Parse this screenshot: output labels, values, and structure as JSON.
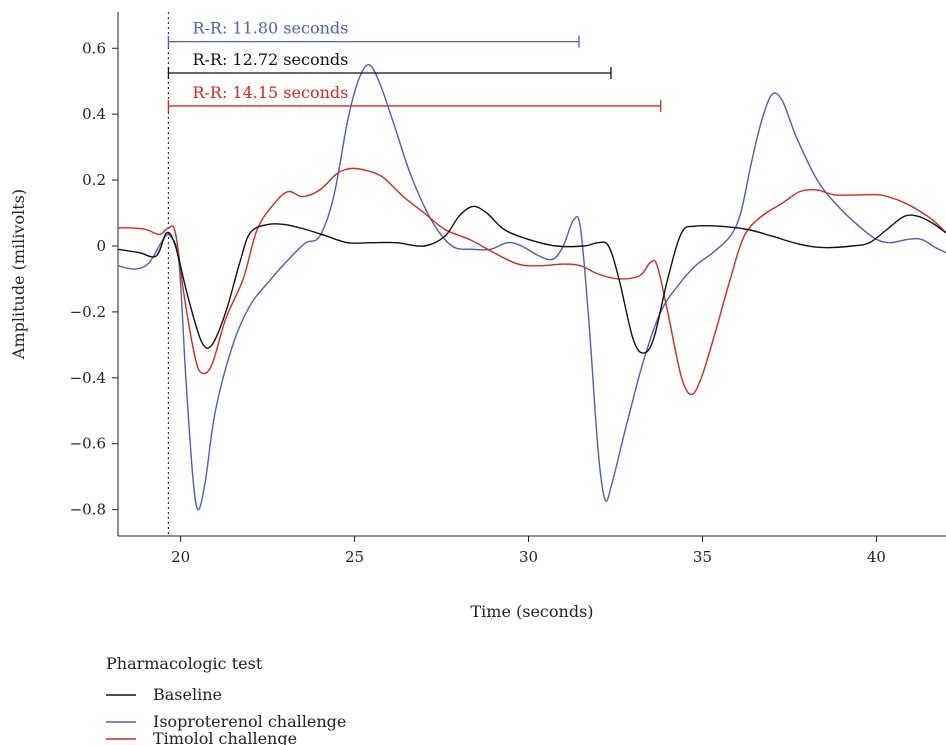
{
  "chart_data": {
    "type": "line",
    "xlabel": "Time (seconds)",
    "ylabel": "Amplitude (milivolts)",
    "xlim": [
      18.2,
      42
    ],
    "ylim": [
      -0.88,
      0.71
    ],
    "xticks": [
      20,
      25,
      30,
      35,
      40
    ],
    "yticks": [
      -0.8,
      -0.6,
      -0.4,
      -0.2,
      0,
      0.2,
      0.4,
      0.6
    ],
    "xtick_labels": [
      "20",
      "25",
      "30",
      "35",
      "40"
    ],
    "ytick_labels": [
      "−0.8",
      "−0.6",
      "−0.4",
      "−0.2",
      "0",
      "0.2",
      "0.4",
      "0.6"
    ],
    "vline_x": 19.65,
    "legend": {
      "title": "Pharmacologic test",
      "placement": "below"
    },
    "rr_annotations": [
      {
        "label": "R-R: 11.80 seconds",
        "x_start": 19.65,
        "x_end": 31.45,
        "y": 0.62,
        "color": "#4a5fbf"
      },
      {
        "label": "R-R: 12.72 seconds",
        "x_start": 19.65,
        "x_end": 32.37,
        "y": 0.525,
        "color": "#111111"
      },
      {
        "label": "R-R: 14.15 seconds",
        "x_start": 19.65,
        "x_end": 33.8,
        "y": 0.425,
        "color": "#d42a20"
      }
    ],
    "series": [
      {
        "name": "Baseline",
        "color": "#111111",
        "points": [
          [
            18.2,
            -0.01
          ],
          [
            18.8,
            -0.02
          ],
          [
            19.3,
            -0.03
          ],
          [
            19.6,
            0.04
          ],
          [
            19.85,
            0.0
          ],
          [
            20.2,
            -0.15
          ],
          [
            20.6,
            -0.29
          ],
          [
            20.9,
            -0.3
          ],
          [
            21.3,
            -0.2
          ],
          [
            21.7,
            -0.05
          ],
          [
            22.0,
            0.04
          ],
          [
            22.5,
            0.065
          ],
          [
            23.0,
            0.065
          ],
          [
            23.6,
            0.05
          ],
          [
            24.2,
            0.03
          ],
          [
            24.8,
            0.01
          ],
          [
            25.5,
            0.01
          ],
          [
            26.2,
            0.01
          ],
          [
            27.0,
            0.0
          ],
          [
            27.6,
            0.03
          ],
          [
            28.0,
            0.09
          ],
          [
            28.4,
            0.12
          ],
          [
            28.8,
            0.1
          ],
          [
            29.3,
            0.05
          ],
          [
            30.0,
            0.02
          ],
          [
            30.8,
            0.0
          ],
          [
            31.6,
            0.0
          ],
          [
            32.0,
            0.01
          ],
          [
            32.3,
            0.0
          ],
          [
            32.6,
            -0.1
          ],
          [
            33.0,
            -0.28
          ],
          [
            33.3,
            -0.325
          ],
          [
            33.6,
            -0.28
          ],
          [
            34.0,
            -0.1
          ],
          [
            34.4,
            0.04
          ],
          [
            34.8,
            0.06
          ],
          [
            35.5,
            0.06
          ],
          [
            36.3,
            0.05
          ],
          [
            37.0,
            0.03
          ],
          [
            37.8,
            0.005
          ],
          [
            38.5,
            -0.005
          ],
          [
            39.3,
            0.0
          ],
          [
            39.8,
            0.01
          ],
          [
            40.3,
            0.05
          ],
          [
            40.8,
            0.09
          ],
          [
            41.2,
            0.09
          ],
          [
            41.6,
            0.07
          ],
          [
            42.0,
            0.04
          ]
        ]
      },
      {
        "name": "Isoproterenol challenge",
        "color": "#4a5fbf",
        "points": [
          [
            18.2,
            -0.06
          ],
          [
            18.7,
            -0.07
          ],
          [
            19.1,
            -0.05
          ],
          [
            19.5,
            0.02
          ],
          [
            19.7,
            0.03
          ],
          [
            19.95,
            -0.05
          ],
          [
            20.15,
            -0.4
          ],
          [
            20.35,
            -0.7
          ],
          [
            20.5,
            -0.8
          ],
          [
            20.7,
            -0.72
          ],
          [
            21.0,
            -0.5
          ],
          [
            21.5,
            -0.3
          ],
          [
            22.0,
            -0.18
          ],
          [
            22.6,
            -0.1
          ],
          [
            23.2,
            -0.03
          ],
          [
            23.6,
            0.01
          ],
          [
            24.0,
            0.03
          ],
          [
            24.4,
            0.15
          ],
          [
            24.8,
            0.38
          ],
          [
            25.1,
            0.5
          ],
          [
            25.4,
            0.55
          ],
          [
            25.7,
            0.5
          ],
          [
            26.1,
            0.38
          ],
          [
            26.6,
            0.22
          ],
          [
            27.2,
            0.08
          ],
          [
            27.8,
            0.0
          ],
          [
            28.4,
            -0.01
          ],
          [
            28.9,
            -0.01
          ],
          [
            29.4,
            0.01
          ],
          [
            29.8,
            0.0
          ],
          [
            30.3,
            -0.03
          ],
          [
            30.7,
            -0.04
          ],
          [
            31.0,
            0.0
          ],
          [
            31.3,
            0.08
          ],
          [
            31.5,
            0.05
          ],
          [
            31.75,
            -0.25
          ],
          [
            32.0,
            -0.62
          ],
          [
            32.2,
            -0.77
          ],
          [
            32.4,
            -0.72
          ],
          [
            32.8,
            -0.55
          ],
          [
            33.3,
            -0.35
          ],
          [
            33.8,
            -0.2
          ],
          [
            34.3,
            -0.12
          ],
          [
            34.8,
            -0.06
          ],
          [
            35.3,
            -0.02
          ],
          [
            35.8,
            0.03
          ],
          [
            36.1,
            0.1
          ],
          [
            36.4,
            0.25
          ],
          [
            36.7,
            0.38
          ],
          [
            37.0,
            0.46
          ],
          [
            37.3,
            0.44
          ],
          [
            37.7,
            0.33
          ],
          [
            38.3,
            0.2
          ],
          [
            38.9,
            0.12
          ],
          [
            39.5,
            0.06
          ],
          [
            40.0,
            0.02
          ],
          [
            40.4,
            0.01
          ],
          [
            40.9,
            0.02
          ],
          [
            41.3,
            0.02
          ],
          [
            41.7,
            -0.005
          ],
          [
            42.0,
            -0.02
          ]
        ]
      },
      {
        "name": "Timolol challenge",
        "color": "#d42a20",
        "points": [
          [
            18.2,
            0.055
          ],
          [
            18.6,
            0.055
          ],
          [
            19.0,
            0.05
          ],
          [
            19.4,
            0.035
          ],
          [
            19.65,
            0.055
          ],
          [
            19.85,
            0.04
          ],
          [
            20.1,
            -0.15
          ],
          [
            20.4,
            -0.33
          ],
          [
            20.6,
            -0.385
          ],
          [
            20.9,
            -0.36
          ],
          [
            21.3,
            -0.22
          ],
          [
            21.8,
            -0.1
          ],
          [
            22.2,
            0.05
          ],
          [
            22.7,
            0.13
          ],
          [
            23.1,
            0.165
          ],
          [
            23.5,
            0.15
          ],
          [
            24.0,
            0.17
          ],
          [
            24.5,
            0.22
          ],
          [
            24.9,
            0.235
          ],
          [
            25.3,
            0.23
          ],
          [
            25.8,
            0.21
          ],
          [
            26.4,
            0.15
          ],
          [
            27.0,
            0.1
          ],
          [
            27.6,
            0.05
          ],
          [
            28.3,
            0.02
          ],
          [
            29.0,
            -0.02
          ],
          [
            29.7,
            -0.055
          ],
          [
            30.3,
            -0.06
          ],
          [
            31.0,
            -0.055
          ],
          [
            31.5,
            -0.06
          ],
          [
            32.0,
            -0.085
          ],
          [
            32.6,
            -0.1
          ],
          [
            33.2,
            -0.09
          ],
          [
            33.5,
            -0.05
          ],
          [
            33.7,
            -0.06
          ],
          [
            34.0,
            -0.2
          ],
          [
            34.4,
            -0.4
          ],
          [
            34.7,
            -0.45
          ],
          [
            35.0,
            -0.39
          ],
          [
            35.4,
            -0.25
          ],
          [
            35.8,
            -0.1
          ],
          [
            36.2,
            0.03
          ],
          [
            36.7,
            0.09
          ],
          [
            37.3,
            0.13
          ],
          [
            37.8,
            0.165
          ],
          [
            38.3,
            0.17
          ],
          [
            38.8,
            0.155
          ],
          [
            39.5,
            0.155
          ],
          [
            40.1,
            0.155
          ],
          [
            40.6,
            0.14
          ],
          [
            41.1,
            0.115
          ],
          [
            41.6,
            0.08
          ],
          [
            42.0,
            0.04
          ]
        ]
      }
    ]
  }
}
